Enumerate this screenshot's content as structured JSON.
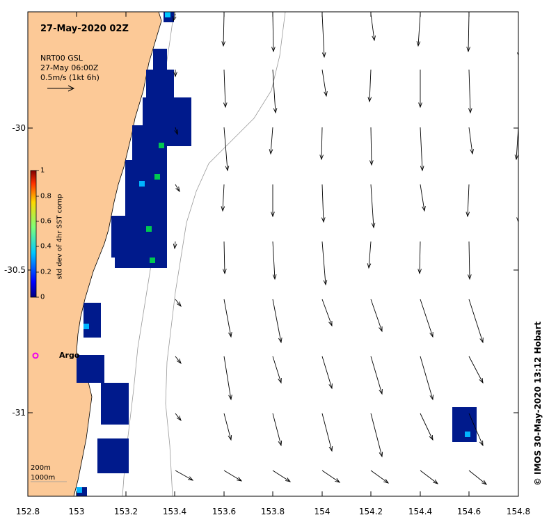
{
  "title": "27-May-2020 02Z",
  "overlay": {
    "line1": "NRT00 GSL",
    "line2": "27-May 06:00Z",
    "line3": "0.5m/s (1kt 6h)"
  },
  "x_ticks": [
    "152.8",
    "153",
    "153.2",
    "153.4",
    "153.6",
    "153.8",
    "154",
    "154.2",
    "154.4",
    "154.6",
    "154.8"
  ],
  "y_ticks": [
    "-30",
    "-30.5",
    "-31"
  ],
  "colorbar": {
    "label": "std dev of 4hr SST comp",
    "ticks": [
      "1",
      "0.8",
      "0.6",
      "0.4",
      "0.2",
      "0"
    ]
  },
  "argo_label": "Argo",
  "depth_labels": {
    "a": "200m",
    "b": "1000m"
  },
  "credit": "© IMOS 30-May-2020 13:12 Hobart",
  "colors": {
    "land": "#fcc997",
    "argo": "#ee00ee",
    "low_std": "#001a8c"
  }
}
